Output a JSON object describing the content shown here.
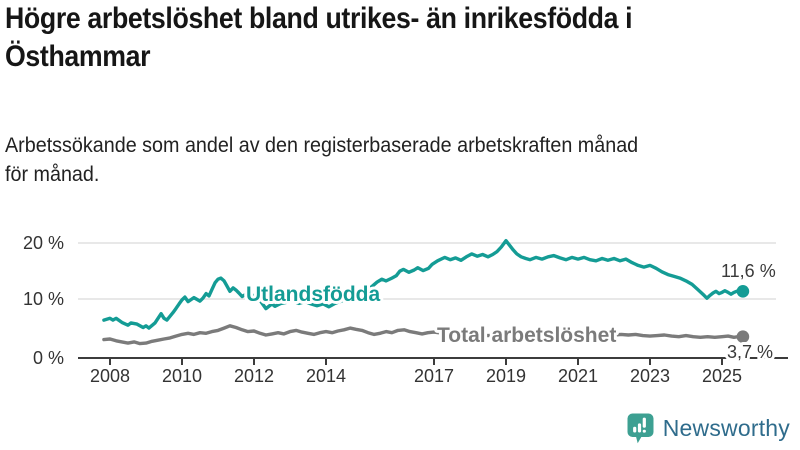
{
  "header": {
    "title": "Högre arbetslöshet bland utrikes- än inrikesfödda i\nÖsthammar",
    "subtitle": "Arbetssökande som andel av den registerbaserade arbetskraften månad\nför månad."
  },
  "footer": {
    "brand": "Newsworthy",
    "logo_icon": "bar-chart-speech-bubble-icon"
  },
  "colors": {
    "series_foreign_born": "#149c95",
    "series_total": "#7b7b7b",
    "gridline": "#d9d9d9",
    "axis": "#3c3c3c",
    "tick_text": "#333333",
    "title_text": "#161616",
    "logo_teal": "#3da092",
    "brand_text": "#2f6c8c"
  },
  "chart_data": {
    "type": "line",
    "unit": "%",
    "grid": "horizontal-only",
    "legend": "inline-labels",
    "ylim": [
      0,
      21
    ],
    "xlim": [
      2007.8,
      2025.8
    ],
    "y_ticks": [
      {
        "value": 20,
        "label": "20 %"
      },
      {
        "value": 10,
        "label": "10 %"
      },
      {
        "value": 0,
        "label": "0 %"
      }
    ],
    "x_ticks": [
      {
        "year": 2008,
        "label": "2008"
      },
      {
        "year": 2010,
        "label": "2010"
      },
      {
        "year": 2012,
        "label": "2012"
      },
      {
        "year": 2014,
        "label": "2014"
      },
      {
        "year": 2017,
        "label": "2017"
      },
      {
        "year": 2019,
        "label": "2019"
      },
      {
        "year": 2021,
        "label": "2021"
      },
      {
        "year": 2023,
        "label": "2023"
      },
      {
        "year": 2025,
        "label": "2025"
      }
    ],
    "series": [
      {
        "name": "Utlandsfödda",
        "color": "#149c95",
        "end_label": "11,6 %",
        "end_value": 11.6,
        "points": [
          [
            2007.83,
            6.6
          ],
          [
            2008.0,
            6.9
          ],
          [
            2008.08,
            6.6
          ],
          [
            2008.17,
            6.9
          ],
          [
            2008.33,
            6.2
          ],
          [
            2008.5,
            5.7
          ],
          [
            2008.58,
            6.1
          ],
          [
            2008.75,
            5.9
          ],
          [
            2008.92,
            5.3
          ],
          [
            2009.0,
            5.6
          ],
          [
            2009.08,
            5.2
          ],
          [
            2009.25,
            6.1
          ],
          [
            2009.42,
            7.7
          ],
          [
            2009.5,
            6.9
          ],
          [
            2009.58,
            6.6
          ],
          [
            2009.75,
            7.9
          ],
          [
            2009.83,
            8.6
          ],
          [
            2009.92,
            9.4
          ],
          [
            2010.0,
            10.1
          ],
          [
            2010.08,
            10.6
          ],
          [
            2010.17,
            9.8
          ],
          [
            2010.33,
            10.5
          ],
          [
            2010.5,
            9.9
          ],
          [
            2010.58,
            10.4
          ],
          [
            2010.67,
            11.2
          ],
          [
            2010.75,
            10.8
          ],
          [
            2010.83,
            11.9
          ],
          [
            2010.92,
            13.1
          ],
          [
            2011.0,
            13.7
          ],
          [
            2011.08,
            13.9
          ],
          [
            2011.17,
            13.4
          ],
          [
            2011.25,
            12.5
          ],
          [
            2011.33,
            11.6
          ],
          [
            2011.42,
            12.2
          ],
          [
            2011.5,
            11.8
          ],
          [
            2011.58,
            11.3
          ],
          [
            2011.67,
            10.7
          ],
          [
            2011.75,
            11.0
          ],
          [
            2011.83,
            11.3
          ],
          [
            2011.92,
            10.6
          ],
          [
            2012.0,
            10.9
          ],
          [
            2012.08,
            10.5
          ],
          [
            2012.17,
            10.0
          ],
          [
            2012.33,
            8.6
          ],
          [
            2012.5,
            9.4
          ],
          [
            2012.58,
            9.0
          ],
          [
            2012.75,
            9.5
          ],
          [
            2012.92,
            9.7
          ],
          [
            2013.08,
            9.9
          ],
          [
            2013.25,
            9.5
          ],
          [
            2013.42,
            9.8
          ],
          [
            2013.58,
            9.4
          ],
          [
            2013.75,
            9.1
          ],
          [
            2013.92,
            9.4
          ],
          [
            2014.08,
            8.9
          ],
          [
            2014.25,
            9.5
          ],
          [
            2014.42,
            9.9
          ],
          [
            2014.58,
            10.3
          ],
          [
            2014.75,
            10.7
          ],
          [
            2014.92,
            11.1
          ],
          [
            2015.08,
            11.6
          ],
          [
            2015.25,
            12.3
          ],
          [
            2015.42,
            13.2
          ],
          [
            2015.55,
            13.7
          ],
          [
            2015.67,
            13.4
          ],
          [
            2015.83,
            13.9
          ],
          [
            2015.95,
            14.3
          ],
          [
            2016.05,
            15.1
          ],
          [
            2016.15,
            15.4
          ],
          [
            2016.3,
            14.9
          ],
          [
            2016.45,
            15.3
          ],
          [
            2016.55,
            15.7
          ],
          [
            2016.7,
            15.2
          ],
          [
            2016.85,
            15.6
          ],
          [
            2016.95,
            16.3
          ],
          [
            2017.1,
            16.9
          ],
          [
            2017.3,
            17.5
          ],
          [
            2017.45,
            17.1
          ],
          [
            2017.6,
            17.4
          ],
          [
            2017.75,
            17.0
          ],
          [
            2017.9,
            17.6
          ],
          [
            2018.05,
            18.1
          ],
          [
            2018.2,
            17.7
          ],
          [
            2018.35,
            18.0
          ],
          [
            2018.5,
            17.6
          ],
          [
            2018.63,
            18.0
          ],
          [
            2018.75,
            18.5
          ],
          [
            2018.87,
            19.3
          ],
          [
            2019.0,
            20.4
          ],
          [
            2019.1,
            19.6
          ],
          [
            2019.2,
            18.8
          ],
          [
            2019.3,
            18.1
          ],
          [
            2019.42,
            17.6
          ],
          [
            2019.55,
            17.3
          ],
          [
            2019.67,
            17.1
          ],
          [
            2019.83,
            17.5
          ],
          [
            2020.0,
            17.2
          ],
          [
            2020.17,
            17.6
          ],
          [
            2020.33,
            17.8
          ],
          [
            2020.5,
            17.4
          ],
          [
            2020.67,
            17.1
          ],
          [
            2020.83,
            17.5
          ],
          [
            2021.0,
            17.2
          ],
          [
            2021.17,
            17.5
          ],
          [
            2021.33,
            17.1
          ],
          [
            2021.5,
            16.9
          ],
          [
            2021.67,
            17.3
          ],
          [
            2021.83,
            17.0
          ],
          [
            2022.0,
            17.3
          ],
          [
            2022.17,
            16.9
          ],
          [
            2022.33,
            17.2
          ],
          [
            2022.5,
            16.6
          ],
          [
            2022.67,
            16.1
          ],
          [
            2022.83,
            15.8
          ],
          [
            2023.0,
            16.1
          ],
          [
            2023.17,
            15.6
          ],
          [
            2023.33,
            15.0
          ],
          [
            2023.5,
            14.5
          ],
          [
            2023.67,
            14.2
          ],
          [
            2023.83,
            13.9
          ],
          [
            2024.0,
            13.4
          ],
          [
            2024.17,
            12.8
          ],
          [
            2024.33,
            11.9
          ],
          [
            2024.5,
            10.9
          ],
          [
            2024.58,
            10.4
          ],
          [
            2024.67,
            10.9
          ],
          [
            2024.75,
            11.3
          ],
          [
            2024.83,
            11.6
          ],
          [
            2024.92,
            11.2
          ],
          [
            2025.0,
            11.4
          ],
          [
            2025.08,
            11.7
          ],
          [
            2025.17,
            11.4
          ],
          [
            2025.25,
            11.1
          ],
          [
            2025.33,
            11.4
          ],
          [
            2025.45,
            11.7
          ],
          [
            2025.58,
            11.6
          ]
        ]
      },
      {
        "name": "Total arbetslöshet",
        "color": "#7b7b7b",
        "end_label": "3,7 %",
        "end_value": 3.7,
        "points": [
          [
            2007.83,
            3.2
          ],
          [
            2008.0,
            3.3
          ],
          [
            2008.17,
            3.0
          ],
          [
            2008.33,
            2.8
          ],
          [
            2008.5,
            2.6
          ],
          [
            2008.67,
            2.8
          ],
          [
            2008.83,
            2.5
          ],
          [
            2009.0,
            2.6
          ],
          [
            2009.17,
            2.9
          ],
          [
            2009.33,
            3.1
          ],
          [
            2009.5,
            3.3
          ],
          [
            2009.67,
            3.5
          ],
          [
            2009.83,
            3.8
          ],
          [
            2010.0,
            4.1
          ],
          [
            2010.17,
            4.3
          ],
          [
            2010.33,
            4.1
          ],
          [
            2010.5,
            4.4
          ],
          [
            2010.67,
            4.3
          ],
          [
            2010.83,
            4.6
          ],
          [
            2011.0,
            4.8
          ],
          [
            2011.17,
            5.2
          ],
          [
            2011.33,
            5.6
          ],
          [
            2011.5,
            5.3
          ],
          [
            2011.67,
            4.9
          ],
          [
            2011.83,
            4.6
          ],
          [
            2012.0,
            4.7
          ],
          [
            2012.17,
            4.3
          ],
          [
            2012.33,
            4.0
          ],
          [
            2012.5,
            4.2
          ],
          [
            2012.67,
            4.4
          ],
          [
            2012.83,
            4.2
          ],
          [
            2013.0,
            4.6
          ],
          [
            2013.17,
            4.8
          ],
          [
            2013.33,
            4.5
          ],
          [
            2013.5,
            4.3
          ],
          [
            2013.67,
            4.1
          ],
          [
            2013.83,
            4.4
          ],
          [
            2014.0,
            4.6
          ],
          [
            2014.17,
            4.4
          ],
          [
            2014.33,
            4.7
          ],
          [
            2014.5,
            4.9
          ],
          [
            2014.67,
            5.2
          ],
          [
            2014.83,
            5.0
          ],
          [
            2015.0,
            4.8
          ],
          [
            2015.17,
            4.4
          ],
          [
            2015.33,
            4.1
          ],
          [
            2015.5,
            4.3
          ],
          [
            2015.67,
            4.6
          ],
          [
            2015.83,
            4.4
          ],
          [
            2016.0,
            4.8
          ],
          [
            2016.17,
            4.9
          ],
          [
            2016.33,
            4.6
          ],
          [
            2016.5,
            4.4
          ],
          [
            2016.67,
            4.2
          ],
          [
            2016.83,
            4.4
          ],
          [
            2017.0,
            4.5
          ],
          [
            2017.25,
            4.3
          ],
          [
            2017.5,
            4.1
          ],
          [
            2017.75,
            4.2
          ],
          [
            2018.0,
            4.1
          ],
          [
            2018.25,
            4.0
          ],
          [
            2018.5,
            3.9
          ],
          [
            2018.75,
            4.0
          ],
          [
            2019.0,
            3.9
          ],
          [
            2019.25,
            3.8
          ],
          [
            2019.5,
            3.9
          ],
          [
            2019.75,
            4.0
          ],
          [
            2020.0,
            4.1
          ],
          [
            2020.25,
            4.5
          ],
          [
            2020.5,
            4.6
          ],
          [
            2020.75,
            4.4
          ],
          [
            2021.0,
            4.3
          ],
          [
            2021.25,
            4.2
          ],
          [
            2021.5,
            4.0
          ],
          [
            2021.75,
            4.1
          ],
          [
            2022.0,
            4.0
          ],
          [
            2022.2,
            4.1
          ],
          [
            2022.4,
            4.0
          ],
          [
            2022.6,
            4.1
          ],
          [
            2022.8,
            3.9
          ],
          [
            2023.0,
            3.8
          ],
          [
            2023.2,
            3.9
          ],
          [
            2023.4,
            4.0
          ],
          [
            2023.6,
            3.8
          ],
          [
            2023.8,
            3.7
          ],
          [
            2024.0,
            3.9
          ],
          [
            2024.2,
            3.7
          ],
          [
            2024.4,
            3.6
          ],
          [
            2024.6,
            3.7
          ],
          [
            2024.8,
            3.6
          ],
          [
            2025.0,
            3.7
          ],
          [
            2025.17,
            3.8
          ],
          [
            2025.33,
            3.6
          ],
          [
            2025.45,
            3.7
          ],
          [
            2025.58,
            3.7
          ]
        ]
      }
    ]
  }
}
